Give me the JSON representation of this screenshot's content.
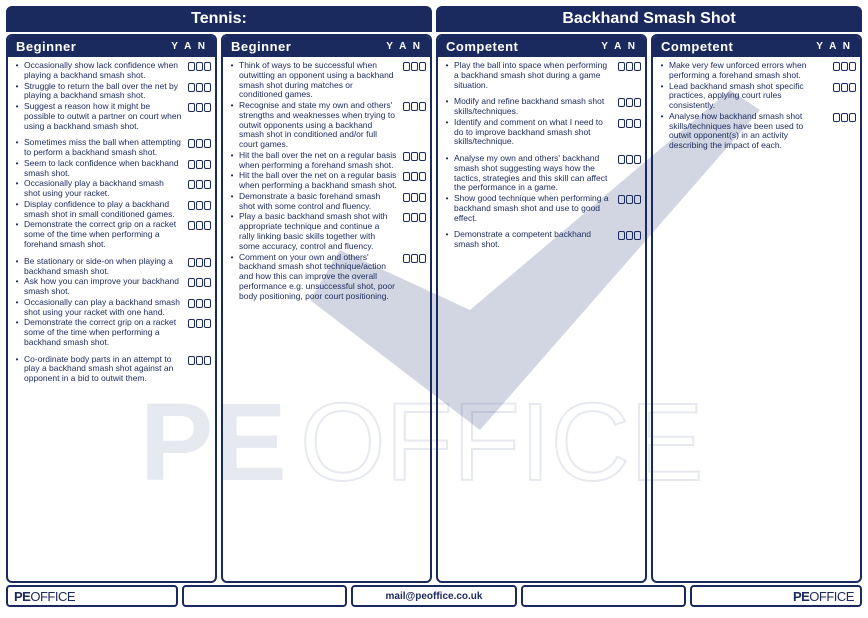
{
  "colors": {
    "brand": "#1b2a5e",
    "bg": "#ffffff",
    "watermark_fill": "#4a5a8a",
    "watermark_opacity": 0.25
  },
  "header": {
    "left": "Tennis:",
    "right": "Backhand Smash Shot"
  },
  "yan_label": "Y A N",
  "columns": [
    {
      "title": "Beginner",
      "groups": [
        [
          "Occasionally show lack confidence when playing a backhand smash shot.",
          "Struggle to return the ball over the net by playing a backhand smash shot.",
          "Suggest a reason how it might be possible to outwit a partner on court when using a backhand smash shot."
        ],
        [
          "Sometimes miss the ball when attempting to perform a backhand smash shot.",
          "Seem to lack confidence when backhand smash shot.",
          "Occasionally play a backhand smash shot using your racket.",
          "Display confidence to play a backhand smash shot in small conditioned games.",
          "Demonstrate the correct grip on a racket some of the time when performing a forehand smash shot."
        ],
        [
          "Be stationary or side-on when playing a backhand smash shot.",
          "Ask how you can improve your backhand smash shot.",
          "Occasionally can play a backhand smash shot using your racket with one hand.",
          "Demonstrate the correct grip on a racket some of the time when performing a backhand smash shot."
        ],
        [
          "Co-ordinate body parts in an attempt to play a backhand smash shot against an opponent in a bid to outwit them."
        ]
      ]
    },
    {
      "title": "Beginner",
      "groups": [
        [
          "Think of ways to be successful when outwitting an opponent using a backhand smash shot during matches or conditioned games.",
          "Recognise and state my own and others' strengths and weaknesses when trying to outwit opponents using a backhand smash shot in conditioned and/or full court games.",
          "Hit the ball over the net on a regular basis when performing a forehand smash shot.",
          "Hit the ball over the net on a regular basis when performing a backhand smash shot.",
          "Demonstrate a basic forehand smash shot with some control and fluency.",
          "Play a basic backhand smash shot with appropriate technique and continue a rally linking basic skills together with some accuracy, control and fluency.",
          "Comment on your own and others' backhand smash shot technique/action and how this can improve the overall performance e.g. unsuccessful shot, poor body positioning, poor court positioning."
        ]
      ]
    },
    {
      "title": "Competent",
      "groups": [
        [
          "Play the ball into space when performing a backhand smash shot during a game situation."
        ],
        [
          "Modify and refine backhand smash shot skills/techniques.",
          "Identify and comment on what I need to do to improve backhand smash shot skills/technique."
        ],
        [
          "Analyse my own and others' backhand smash shot suggesting ways how the tactics, strategies and this skill can affect the performance in a game.",
          "Show good technique when performing a backhand smash shot and use to good effect."
        ],
        [
          "Demonstrate a competent backhand smash shot."
        ]
      ]
    },
    {
      "title": "Competent",
      "groups": [
        [
          "Make very few unforced errors when performing a forehand smash shot.",
          "Lead backhand smash shot specific practices, applying court rules consistently.",
          "Analyse how backhand smash shot skills/techniques have been used to outwit opponent(s) in an activity describing the impact of each."
        ]
      ]
    }
  ],
  "footer": {
    "logo_pe": "PE",
    "logo_office": "OFFICE",
    "email": "mail@peoffice.co.uk"
  },
  "watermark": {
    "text_pe": "PE",
    "text_office": "OFFICE"
  }
}
